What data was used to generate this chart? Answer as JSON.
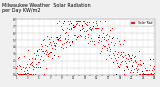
{
  "title": "Milwaukee Weather  Solar Radiation\nper Day KW/m2",
  "title_fontsize": 3.5,
  "background_color": "#f0f0f0",
  "plot_bg_color": "#ffffff",
  "grid_color": "#c0c0c0",
  "red_color": "#ff0000",
  "black_color": "#000000",
  "legend_label": "Solar Rad.",
  "legend_color": "#ff0000",
  "ylim": [
    0,
    8
  ],
  "yticks": [
    0,
    1,
    2,
    3,
    4,
    5,
    6,
    7,
    8
  ],
  "ytick_labels": [
    "0",
    "1",
    "2",
    "3",
    "4",
    "5",
    "6",
    "7",
    "8"
  ],
  "n_points": 365,
  "x_tick_positions": [
    1,
    15,
    32,
    46,
    60,
    74,
    91,
    105,
    121,
    135,
    152,
    166,
    182,
    196,
    213,
    227,
    244,
    258,
    274,
    288,
    305,
    319,
    335,
    349,
    365
  ],
  "x_tick_labels": [
    "1",
    "",
    "3",
    "",
    "5",
    "",
    "7",
    "",
    "9",
    "",
    "11",
    "",
    "13",
    "",
    "15",
    "",
    "17",
    "",
    "19",
    "",
    "21",
    "",
    "23",
    "",
    "25"
  ]
}
